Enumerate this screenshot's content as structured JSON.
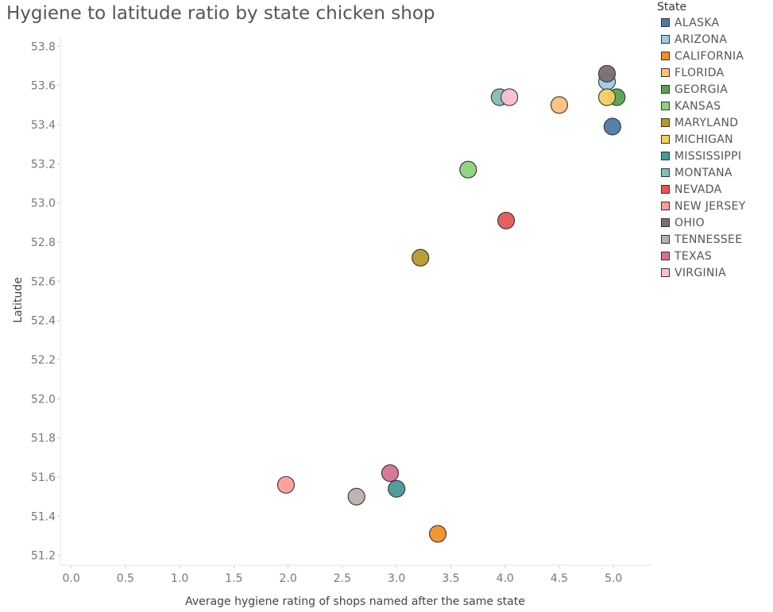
{
  "chart_data": {
    "type": "scatter",
    "title": "Hygiene to latitude ratio by state chicken shop",
    "xlabel": "Average hygiene rating of shops named after the same state",
    "ylabel": "Latitude",
    "xlim": [
      -0.1,
      5.35
    ],
    "ylim": [
      51.15,
      53.85
    ],
    "xticks": [
      "0.0",
      "0.5",
      "1.0",
      "1.5",
      "2.0",
      "2.5",
      "3.0",
      "3.5",
      "4.0",
      "4.5",
      "5.0"
    ],
    "yticks": [
      "51.2",
      "51.4",
      "51.6",
      "51.8",
      "52.0",
      "52.2",
      "52.4",
      "52.6",
      "52.8",
      "53.0",
      "53.2",
      "53.4",
      "53.6",
      "53.8"
    ],
    "legend_title": "State",
    "legend_position": "right",
    "series": [
      {
        "name": "ALASKA",
        "color": "#4e79a7",
        "x": 4.99,
        "y": 53.39
      },
      {
        "name": "ARIZONA",
        "color": "#a0cbe8",
        "x": 4.94,
        "y": 53.62
      },
      {
        "name": "CALIFORNIA",
        "color": "#f28e2b",
        "x": 3.38,
        "y": 51.31
      },
      {
        "name": "FLORIDA",
        "color": "#ffbe7d",
        "x": 4.5,
        "y": 53.5
      },
      {
        "name": "GEORGIA",
        "color": "#59a14f",
        "x": 5.03,
        "y": 53.54
      },
      {
        "name": "KANSAS",
        "color": "#8cd17d",
        "x": 3.66,
        "y": 53.17
      },
      {
        "name": "MARYLAND",
        "color": "#b6992d",
        "x": 3.22,
        "y": 52.72
      },
      {
        "name": "MICHIGAN",
        "color": "#f1ce63",
        "x": 4.94,
        "y": 53.54
      },
      {
        "name": "MISSISSIPPI",
        "color": "#499894",
        "x": 3.0,
        "y": 51.54
      },
      {
        "name": "MONTANA",
        "color": "#86bcb6",
        "x": 3.95,
        "y": 53.54
      },
      {
        "name": "NEVADA",
        "color": "#e15759",
        "x": 4.01,
        "y": 52.91
      },
      {
        "name": "NEW JERSEY",
        "color": "#ff9d9a",
        "x": 1.98,
        "y": 51.56
      },
      {
        "name": "OHIO",
        "color": "#79706e",
        "x": 4.94,
        "y": 53.66
      },
      {
        "name": "TENNESSEE",
        "color": "#bab0ac",
        "x": 2.63,
        "y": 51.5
      },
      {
        "name": "TEXAS",
        "color": "#d37295",
        "x": 2.94,
        "y": 51.62
      },
      {
        "name": "VIRGINIA",
        "color": "#fabfd2",
        "x": 4.04,
        "y": 53.54
      }
    ]
  }
}
